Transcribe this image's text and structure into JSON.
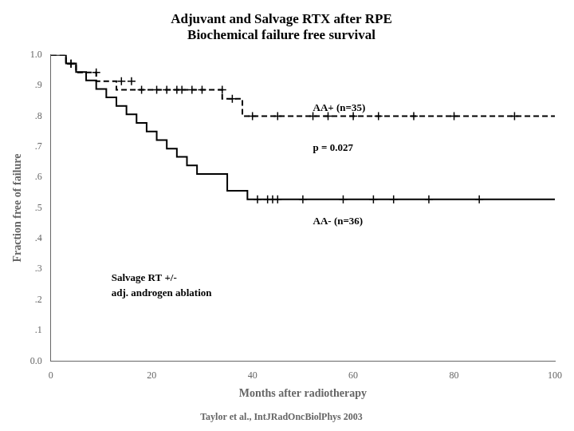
{
  "chart_data": {
    "type": "step",
    "title": [
      "Adjuvant and Salvage RTX after RPE",
      "Biochemical failure free survival"
    ],
    "x_label": "Months after radiotherapy",
    "y_label": "Fraction free of failure",
    "caption": "Taylor et al., IntJRadOncBiolPhys 2003",
    "annotations": [
      {
        "text": "AA+ (n=35)",
        "x": 52,
        "y": 0.825
      },
      {
        "text": "p = 0.027",
        "x": 52,
        "y": 0.695
      },
      {
        "text": "AA- (n=36)",
        "x": 52,
        "y": 0.455
      },
      {
        "text": "Salvage RT +/-",
        "x": 12,
        "y": 0.27
      },
      {
        "text": "adj. androgen ablation",
        "x": 12,
        "y": 0.22
      }
    ],
    "xlim": [
      0,
      100
    ],
    "ylim": [
      0.0,
      1.0
    ],
    "xticks": [
      0,
      20,
      40,
      60,
      80,
      100
    ],
    "yticks": [
      {
        "value": 0.0,
        "label": "0.0"
      },
      {
        "value": 0.1,
        "label": ".1"
      },
      {
        "value": 0.2,
        "label": ".2"
      },
      {
        "value": 0.3,
        "label": ".3"
      },
      {
        "value": 0.4,
        "label": ".4"
      },
      {
        "value": 0.5,
        "label": ".5"
      },
      {
        "value": 0.6,
        "label": ".6"
      },
      {
        "value": 0.7,
        "label": ".7"
      },
      {
        "value": 0.8,
        "label": ".8"
      },
      {
        "value": 0.9,
        "label": ".9"
      },
      {
        "value": 1.0,
        "label": "1.0"
      }
    ],
    "grid": false,
    "series": [
      {
        "color": "#000000",
        "line_style": "dashed",
        "x": [
          0,
          3,
          5,
          7,
          9,
          11,
          13,
          15,
          18,
          22,
          27,
          34,
          38,
          80,
          100
        ],
        "values": [
          1.0,
          0.971,
          0.943,
          0.943,
          0.914,
          0.914,
          0.886,
          0.886,
          0.886,
          0.886,
          0.886,
          0.857,
          0.8,
          0.8,
          0.8
        ]
      },
      {
        "color": "#000000",
        "line_style": "solid",
        "x": [
          0,
          3,
          5,
          7,
          9,
          11,
          13,
          15,
          17,
          19,
          21,
          23,
          25,
          27,
          29,
          31,
          33,
          35,
          37,
          39,
          100
        ],
        "values": [
          1.0,
          0.972,
          0.944,
          0.917,
          0.889,
          0.861,
          0.833,
          0.806,
          0.778,
          0.75,
          0.722,
          0.694,
          0.667,
          0.639,
          0.611,
          0.611,
          0.611,
          0.556,
          0.556,
          0.528,
          0.528
        ]
      },
      {
        "type": "scatter",
        "marker": "plus",
        "color": "#000000",
        "x": [
          4,
          9,
          14,
          16,
          18,
          21,
          23,
          25,
          26,
          28,
          30,
          34,
          36,
          40,
          45,
          52,
          55,
          60,
          65,
          72,
          80,
          92
        ],
        "values": [
          0.971,
          0.943,
          0.914,
          0.914,
          0.886,
          0.886,
          0.886,
          0.886,
          0.886,
          0.886,
          0.886,
          0.886,
          0.857,
          0.8,
          0.8,
          0.8,
          0.8,
          0.8,
          0.8,
          0.8,
          0.8,
          0.8
        ]
      },
      {
        "type": "scatter",
        "marker": "plus",
        "color": "#000000",
        "x": [
          4,
          41,
          43,
          44,
          45,
          50,
          58,
          64,
          68,
          75,
          85
        ],
        "values": [
          0.972,
          0.528,
          0.528,
          0.528,
          0.528,
          0.528,
          0.528,
          0.528,
          0.528,
          0.528,
          0.528
        ]
      }
    ]
  }
}
